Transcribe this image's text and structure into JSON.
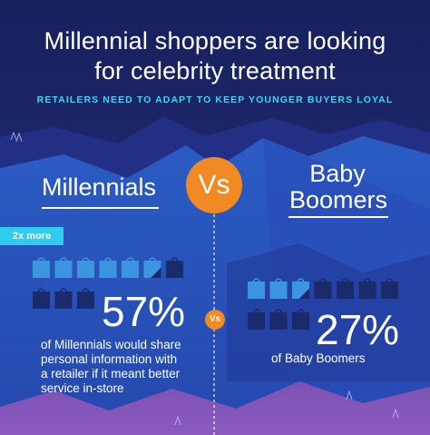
{
  "title": {
    "line1": "Millennial shoppers are looking",
    "line2": "for celebrity treatment"
  },
  "subtitle": "RETAILERS NEED TO ADAPT TO KEEP YOUNGER BUYERS LOYAL",
  "comparison": {
    "vs_label": "Vs",
    "millennials": {
      "label": "Millennials",
      "badge": "2x more",
      "percent": "57%",
      "description": [
        "of Millennials would share",
        "personal information with",
        "a retailer if it meant better",
        "service in-store"
      ],
      "bags_total": 10,
      "bags_filled": 5.7
    },
    "baby_boomers": {
      "label_line1": "Baby",
      "label_line2": "Boomers",
      "percent": "27%",
      "description": "of  Baby Boomers",
      "bags_total": 10,
      "bags_filled": 2.7
    }
  },
  "colors": {
    "background_top": "#1a2466",
    "background_mid": "#2b5ec4",
    "accent_orange": "#f28a24",
    "accent_cyan": "#3fd3f4",
    "bag_filled": "#3b95e0",
    "bag_empty": "#1b2a6b",
    "mountain_purple": "#7a4fb0"
  }
}
